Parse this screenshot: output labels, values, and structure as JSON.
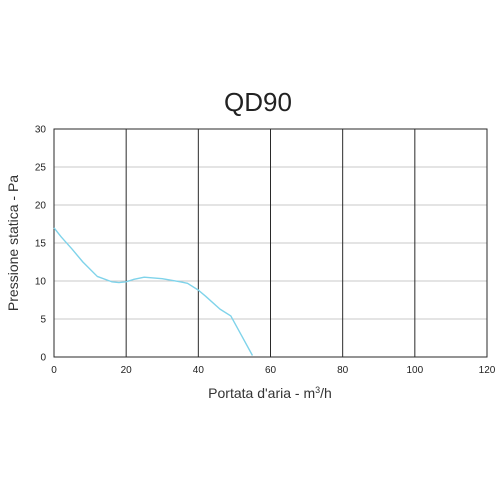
{
  "chart_data": {
    "type": "line",
    "title": "QD90",
    "xlabel_main": "Portata d'aria - m",
    "xlabel_sup": "3",
    "xlabel_tail": "/h",
    "ylabel": "Pressione statica - Pa",
    "xlim": [
      0,
      120
    ],
    "ylim": [
      0,
      30
    ],
    "x_ticks": [
      "0",
      "20",
      "40",
      "60",
      "80",
      "100",
      "120"
    ],
    "y_ticks": [
      "0",
      "5",
      "10",
      "15",
      "20",
      "25",
      "30"
    ],
    "grid": true,
    "series": [
      {
        "color": "#7fd3ea",
        "points": [
          [
            0,
            17.0
          ],
          [
            2,
            15.8
          ],
          [
            5,
            14.2
          ],
          [
            8,
            12.5
          ],
          [
            12,
            10.6
          ],
          [
            16,
            9.9
          ],
          [
            18,
            9.8
          ],
          [
            20,
            9.9
          ],
          [
            22,
            10.2
          ],
          [
            25,
            10.5
          ],
          [
            30,
            10.3
          ],
          [
            35,
            9.9
          ],
          [
            37,
            9.7
          ],
          [
            40,
            8.8
          ],
          [
            42,
            8.0
          ],
          [
            46,
            6.3
          ],
          [
            49,
            5.4
          ],
          [
            52,
            2.8
          ],
          [
            55,
            0.2
          ]
        ]
      }
    ]
  }
}
